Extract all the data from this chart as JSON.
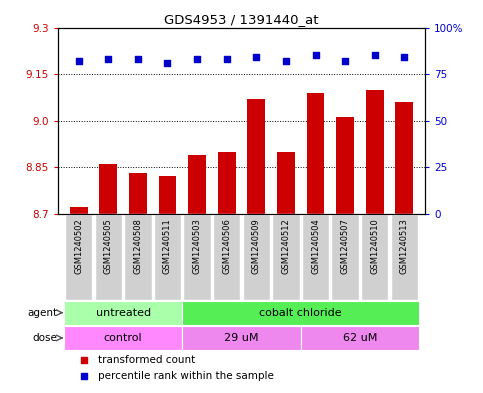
{
  "title": "GDS4953 / 1391440_at",
  "samples": [
    "GSM1240502",
    "GSM1240505",
    "GSM1240508",
    "GSM1240511",
    "GSM1240503",
    "GSM1240506",
    "GSM1240509",
    "GSM1240512",
    "GSM1240504",
    "GSM1240507",
    "GSM1240510",
    "GSM1240513"
  ],
  "red_values": [
    8.72,
    8.86,
    8.83,
    8.82,
    8.89,
    8.9,
    9.07,
    8.9,
    9.09,
    9.01,
    9.1,
    9.06
  ],
  "blue_values": [
    82,
    83,
    83,
    81,
    83,
    83,
    84,
    82,
    85,
    82,
    85,
    84
  ],
  "ylim": [
    8.7,
    9.3
  ],
  "yticks": [
    8.7,
    8.85,
    9.0,
    9.15,
    9.3
  ],
  "y2lim": [
    0,
    100
  ],
  "y2ticks": [
    0,
    25,
    50,
    75,
    100
  ],
  "y2ticklabels": [
    "0",
    "25",
    "50",
    "75",
    "100%"
  ],
  "bar_color": "#cc0000",
  "dot_color": "#0000cc",
  "agent_groups": [
    {
      "label": "untreated",
      "start": 0,
      "end": 4,
      "color": "#aaffaa"
    },
    {
      "label": "cobalt chloride",
      "start": 4,
      "end": 12,
      "color": "#55ee55"
    }
  ],
  "dose_groups": [
    {
      "label": "control",
      "start": 0,
      "end": 4,
      "color": "#ff88ff"
    },
    {
      "label": "29 uM",
      "start": 4,
      "end": 8,
      "color": "#ee88ee"
    },
    {
      "label": "62 uM",
      "start": 8,
      "end": 12,
      "color": "#ee88ee"
    }
  ],
  "legend_red": "transformed count",
  "legend_blue": "percentile rank within the sample",
  "agent_label": "agent",
  "dose_label": "dose",
  "bar_width": 0.6,
  "ymin": 8.7
}
